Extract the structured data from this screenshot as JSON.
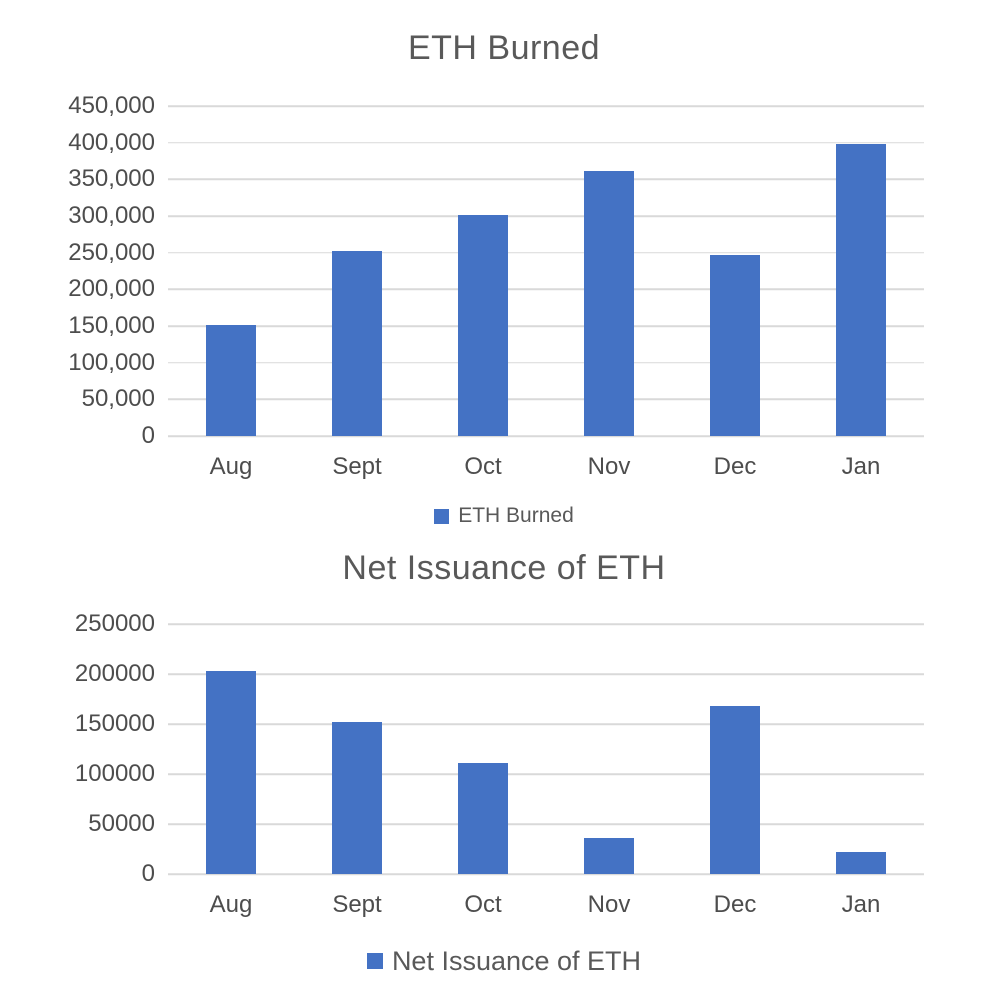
{
  "colors": {
    "bar": "#4472C4",
    "grid": "#D9D9D9",
    "title_text": "#595959",
    "axis_text": "#4d4d4d"
  },
  "chart_data": [
    {
      "type": "bar",
      "title": "ETH Burned",
      "categories": [
        "Aug",
        "Sept",
        "Oct",
        "Nov",
        "Dec",
        "Jan"
      ],
      "values": [
        152000,
        252000,
        302000,
        361000,
        247000,
        398000
      ],
      "xlabel": "",
      "ylabel": "",
      "ylim": [
        0,
        450000
      ],
      "ytick_step": 50000,
      "ytick_labels": [
        "450,000",
        "400,000",
        "350,000",
        "300,000",
        "250,000",
        "200,000",
        "150,000",
        "100,000",
        "50,000",
        "0"
      ],
      "grid": true,
      "legend": [
        "ETH Burned"
      ],
      "legend_position": "bottom"
    },
    {
      "type": "bar",
      "title": "Net Issuance of ETH",
      "categories": [
        "Aug",
        "Sept",
        "Oct",
        "Nov",
        "Dec",
        "Jan"
      ],
      "values": [
        203000,
        152000,
        111000,
        36000,
        168000,
        22000
      ],
      "xlabel": "",
      "ylabel": "",
      "ylim": [
        0,
        250000
      ],
      "ytick_step": 50000,
      "ytick_labels": [
        "250000",
        "200000",
        "150000",
        "100000",
        "50000",
        "0"
      ],
      "grid": true,
      "legend": [
        "Net Issuance of ETH"
      ],
      "legend_position": "bottom"
    }
  ]
}
